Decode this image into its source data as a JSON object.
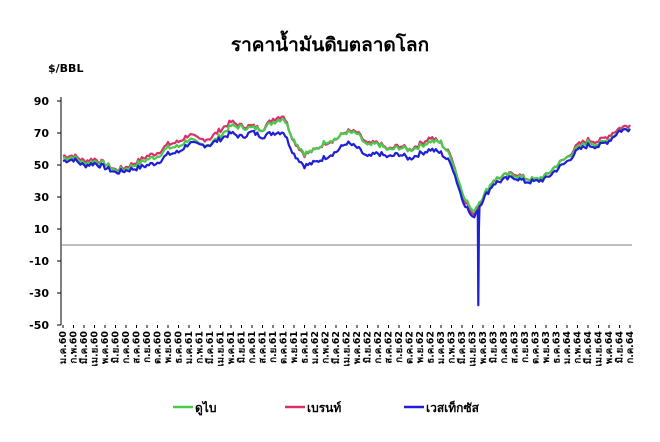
{
  "chart_data": {
    "type": "line",
    "title": "ราคาน้ำมันดิบตลาดโลก",
    "ylabel": "$/BBL",
    "xlabel": "",
    "ylim": [
      -50,
      90
    ],
    "yticks": [
      90,
      70,
      50,
      30,
      10,
      -10,
      -30,
      -50
    ],
    "grid": false,
    "legend": "bottom",
    "categories": [
      "ม.ค.60",
      "ก.พ.60",
      "มี.ค.60",
      "เม.ย.60",
      "พ.ค.60",
      "มิ.ย.60",
      "ก.ค.60",
      "ส.ค.60",
      "ก.ย.60",
      "ต.ค.60",
      "พ.ย.60",
      "ธ.ค.60",
      "ม.ค.61",
      "ก.พ.61",
      "มี.ค.61",
      "เม.ย.61",
      "พ.ค.61",
      "มิ.ย.61",
      "ก.ค.61",
      "ส.ค.61",
      "ก.ย.61",
      "ต.ค.61",
      "พ.ย.61",
      "ธ.ค.61",
      "ม.ค.62",
      "ก.พ.62",
      "มี.ค.62",
      "เม.ย.62",
      "พ.ค.62",
      "มิ.ย.62",
      "ก.ค.62",
      "ส.ค.62",
      "ก.ย.62",
      "ต.ค.62",
      "พ.ย.62",
      "ธ.ค.62",
      "ม.ค.63",
      "ก.พ.63",
      "มี.ค.63",
      "เม.ย.63",
      "พ.ค.63",
      "มิ.ย.63",
      "ก.ค.63",
      "ส.ค.63",
      "ก.ย.63",
      "ต.ค.63",
      "พ.ย.63",
      "ธ.ค.63",
      "ม.ค.64",
      "ก.พ.64",
      "มี.ค.64",
      "เม.ย.64",
      "พ.ค.64",
      "มิ.ย.64",
      "ก.ค.64"
    ],
    "series": [
      {
        "name": "ดูไบ",
        "color": "#4cc94c",
        "values": [
          54.5,
          54.9,
          51.0,
          52.3,
          50.8,
          46.4,
          47.6,
          50.6,
          53.4,
          55.5,
          60.7,
          61.5,
          66.2,
          62.7,
          63.0,
          68.3,
          74.4,
          73.6,
          73.1,
          72.5,
          76.9,
          79.4,
          65.6,
          57.3,
          59.1,
          64.7,
          66.4,
          70.6,
          69.4,
          61.8,
          63.3,
          59.1,
          61.1,
          59.4,
          61.8,
          64.9,
          64.3,
          54.2,
          33.7,
          20.4,
          30.5,
          40.8,
          43.3,
          44.0,
          41.6,
          40.8,
          43.5,
          49.8,
          54.8,
          60.4,
          64.4,
          62.9,
          66.1,
          71.6,
          72.9
        ]
      },
      {
        "name": "เบรนท์",
        "color": "#d6336c",
        "values": [
          55.7,
          55.9,
          52.5,
          53.8,
          50.9,
          46.9,
          48.7,
          51.9,
          55.5,
          57.7,
          62.9,
          64.4,
          69.1,
          65.7,
          66.7,
          72.1,
          76.9,
          74.4,
          74.3,
          72.5,
          78.9,
          81.1,
          64.8,
          56.5,
          59.4,
          64.0,
          66.1,
          71.2,
          70.3,
          63.0,
          64.0,
          59.5,
          62.3,
          59.6,
          63.2,
          67.3,
          63.6,
          55.7,
          32.0,
          18.4,
          29.4,
          40.3,
          43.2,
          45.0,
          41.9,
          40.4,
          43.2,
          49.9,
          54.8,
          62.3,
          65.7,
          64.8,
          68.5,
          73.1,
          75.0
        ]
      },
      {
        "name": "เวสเท็กซัส",
        "color": "#1f1fd6",
        "values": [
          52.6,
          53.5,
          49.6,
          51.1,
          48.5,
          45.2,
          46.6,
          48.0,
          49.8,
          51.6,
          56.7,
          58.0,
          63.7,
          62.2,
          62.7,
          66.3,
          69.9,
          67.5,
          70.6,
          67.9,
          70.2,
          70.8,
          56.7,
          49.5,
          51.5,
          55.0,
          58.2,
          63.9,
          60.8,
          54.7,
          57.4,
          54.8,
          57.0,
          54.0,
          57.1,
          59.8,
          57.5,
          50.5,
          29.2,
          16.6,
          28.5,
          38.3,
          40.8,
          42.4,
          39.6,
          39.6,
          41.4,
          47.1,
          52.1,
          59.0,
          62.3,
          61.7,
          65.2,
          71.4,
          72.5
        ],
        "minimum": -37.6
      }
    ]
  }
}
